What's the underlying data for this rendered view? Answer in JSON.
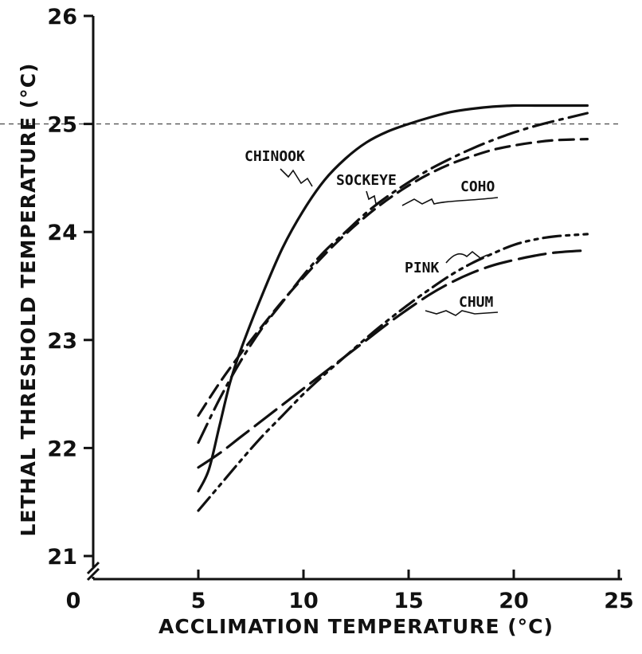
{
  "chart_data": {
    "type": "line",
    "title": "",
    "xlabel": "ACCLIMATION TEMPERATURE (°C)",
    "ylabel": "LETHAL THRESHOLD TEMPERATURE (°C)",
    "xlim": [
      0,
      25
    ],
    "ylim": [
      21,
      26
    ],
    "x_ticks": [
      "0",
      "5",
      "10",
      "15",
      "20",
      "25"
    ],
    "y_ticks": [
      "21",
      "22",
      "23",
      "24",
      "25",
      "26"
    ],
    "y_axis_break": true,
    "reference_line_y": 25,
    "grid": false,
    "legend": "inline labels",
    "series": [
      {
        "name": "CHINOOK",
        "style": "solid",
        "x": [
          5,
          5.5,
          6,
          6.5,
          7,
          8,
          9,
          10,
          11,
          12,
          13,
          14,
          15,
          16,
          17,
          18,
          19,
          20,
          21,
          22,
          23.5
        ],
        "y": [
          21.6,
          21.8,
          22.2,
          22.6,
          22.9,
          23.4,
          23.85,
          24.2,
          24.48,
          24.68,
          24.83,
          24.93,
          25.0,
          25.06,
          25.11,
          25.14,
          25.16,
          25.17,
          25.17,
          25.17,
          25.17
        ]
      },
      {
        "name": "SOCKEYE",
        "style": "dash-dot",
        "x": [
          5,
          6,
          7,
          8,
          9,
          10,
          11,
          12,
          13,
          14,
          15,
          16,
          17,
          18,
          19,
          20,
          21,
          22,
          23.5
        ],
        "y": [
          22.05,
          22.45,
          22.8,
          23.1,
          23.35,
          23.6,
          23.82,
          24.0,
          24.18,
          24.33,
          24.46,
          24.58,
          24.68,
          24.77,
          24.85,
          24.92,
          24.98,
          25.03,
          25.1
        ]
      },
      {
        "name": "COHO",
        "style": "dashed",
        "x": [
          5,
          6,
          7,
          8,
          9,
          10,
          11,
          12,
          13,
          14,
          15,
          16,
          17,
          18,
          19,
          20,
          21,
          22,
          23.5
        ],
        "y": [
          22.3,
          22.6,
          22.87,
          23.12,
          23.36,
          23.58,
          23.79,
          23.98,
          24.15,
          24.3,
          24.43,
          24.54,
          24.63,
          24.7,
          24.76,
          24.8,
          24.83,
          24.85,
          24.86
        ]
      },
      {
        "name": "PINK",
        "style": "dash-dot-dot",
        "x": [
          5,
          6,
          7,
          8,
          9,
          10,
          11,
          12,
          13,
          14,
          15,
          16,
          17,
          18,
          19,
          20,
          21,
          22,
          23.5
        ],
        "y": [
          21.42,
          21.65,
          21.88,
          22.1,
          22.3,
          22.5,
          22.68,
          22.85,
          23.02,
          23.18,
          23.33,
          23.47,
          23.6,
          23.71,
          23.8,
          23.88,
          23.93,
          23.96,
          23.98
        ]
      },
      {
        "name": "CHUM",
        "style": "long-dash",
        "x": [
          5,
          6,
          7,
          8,
          9,
          10,
          11,
          12,
          13,
          14,
          15,
          16,
          17,
          18,
          19,
          20,
          21,
          22,
          23.5
        ],
        "y": [
          21.82,
          21.95,
          22.1,
          22.25,
          22.4,
          22.55,
          22.7,
          22.85,
          23.0,
          23.15,
          23.29,
          23.42,
          23.53,
          23.62,
          23.69,
          23.74,
          23.78,
          23.81,
          23.83
        ]
      }
    ]
  }
}
